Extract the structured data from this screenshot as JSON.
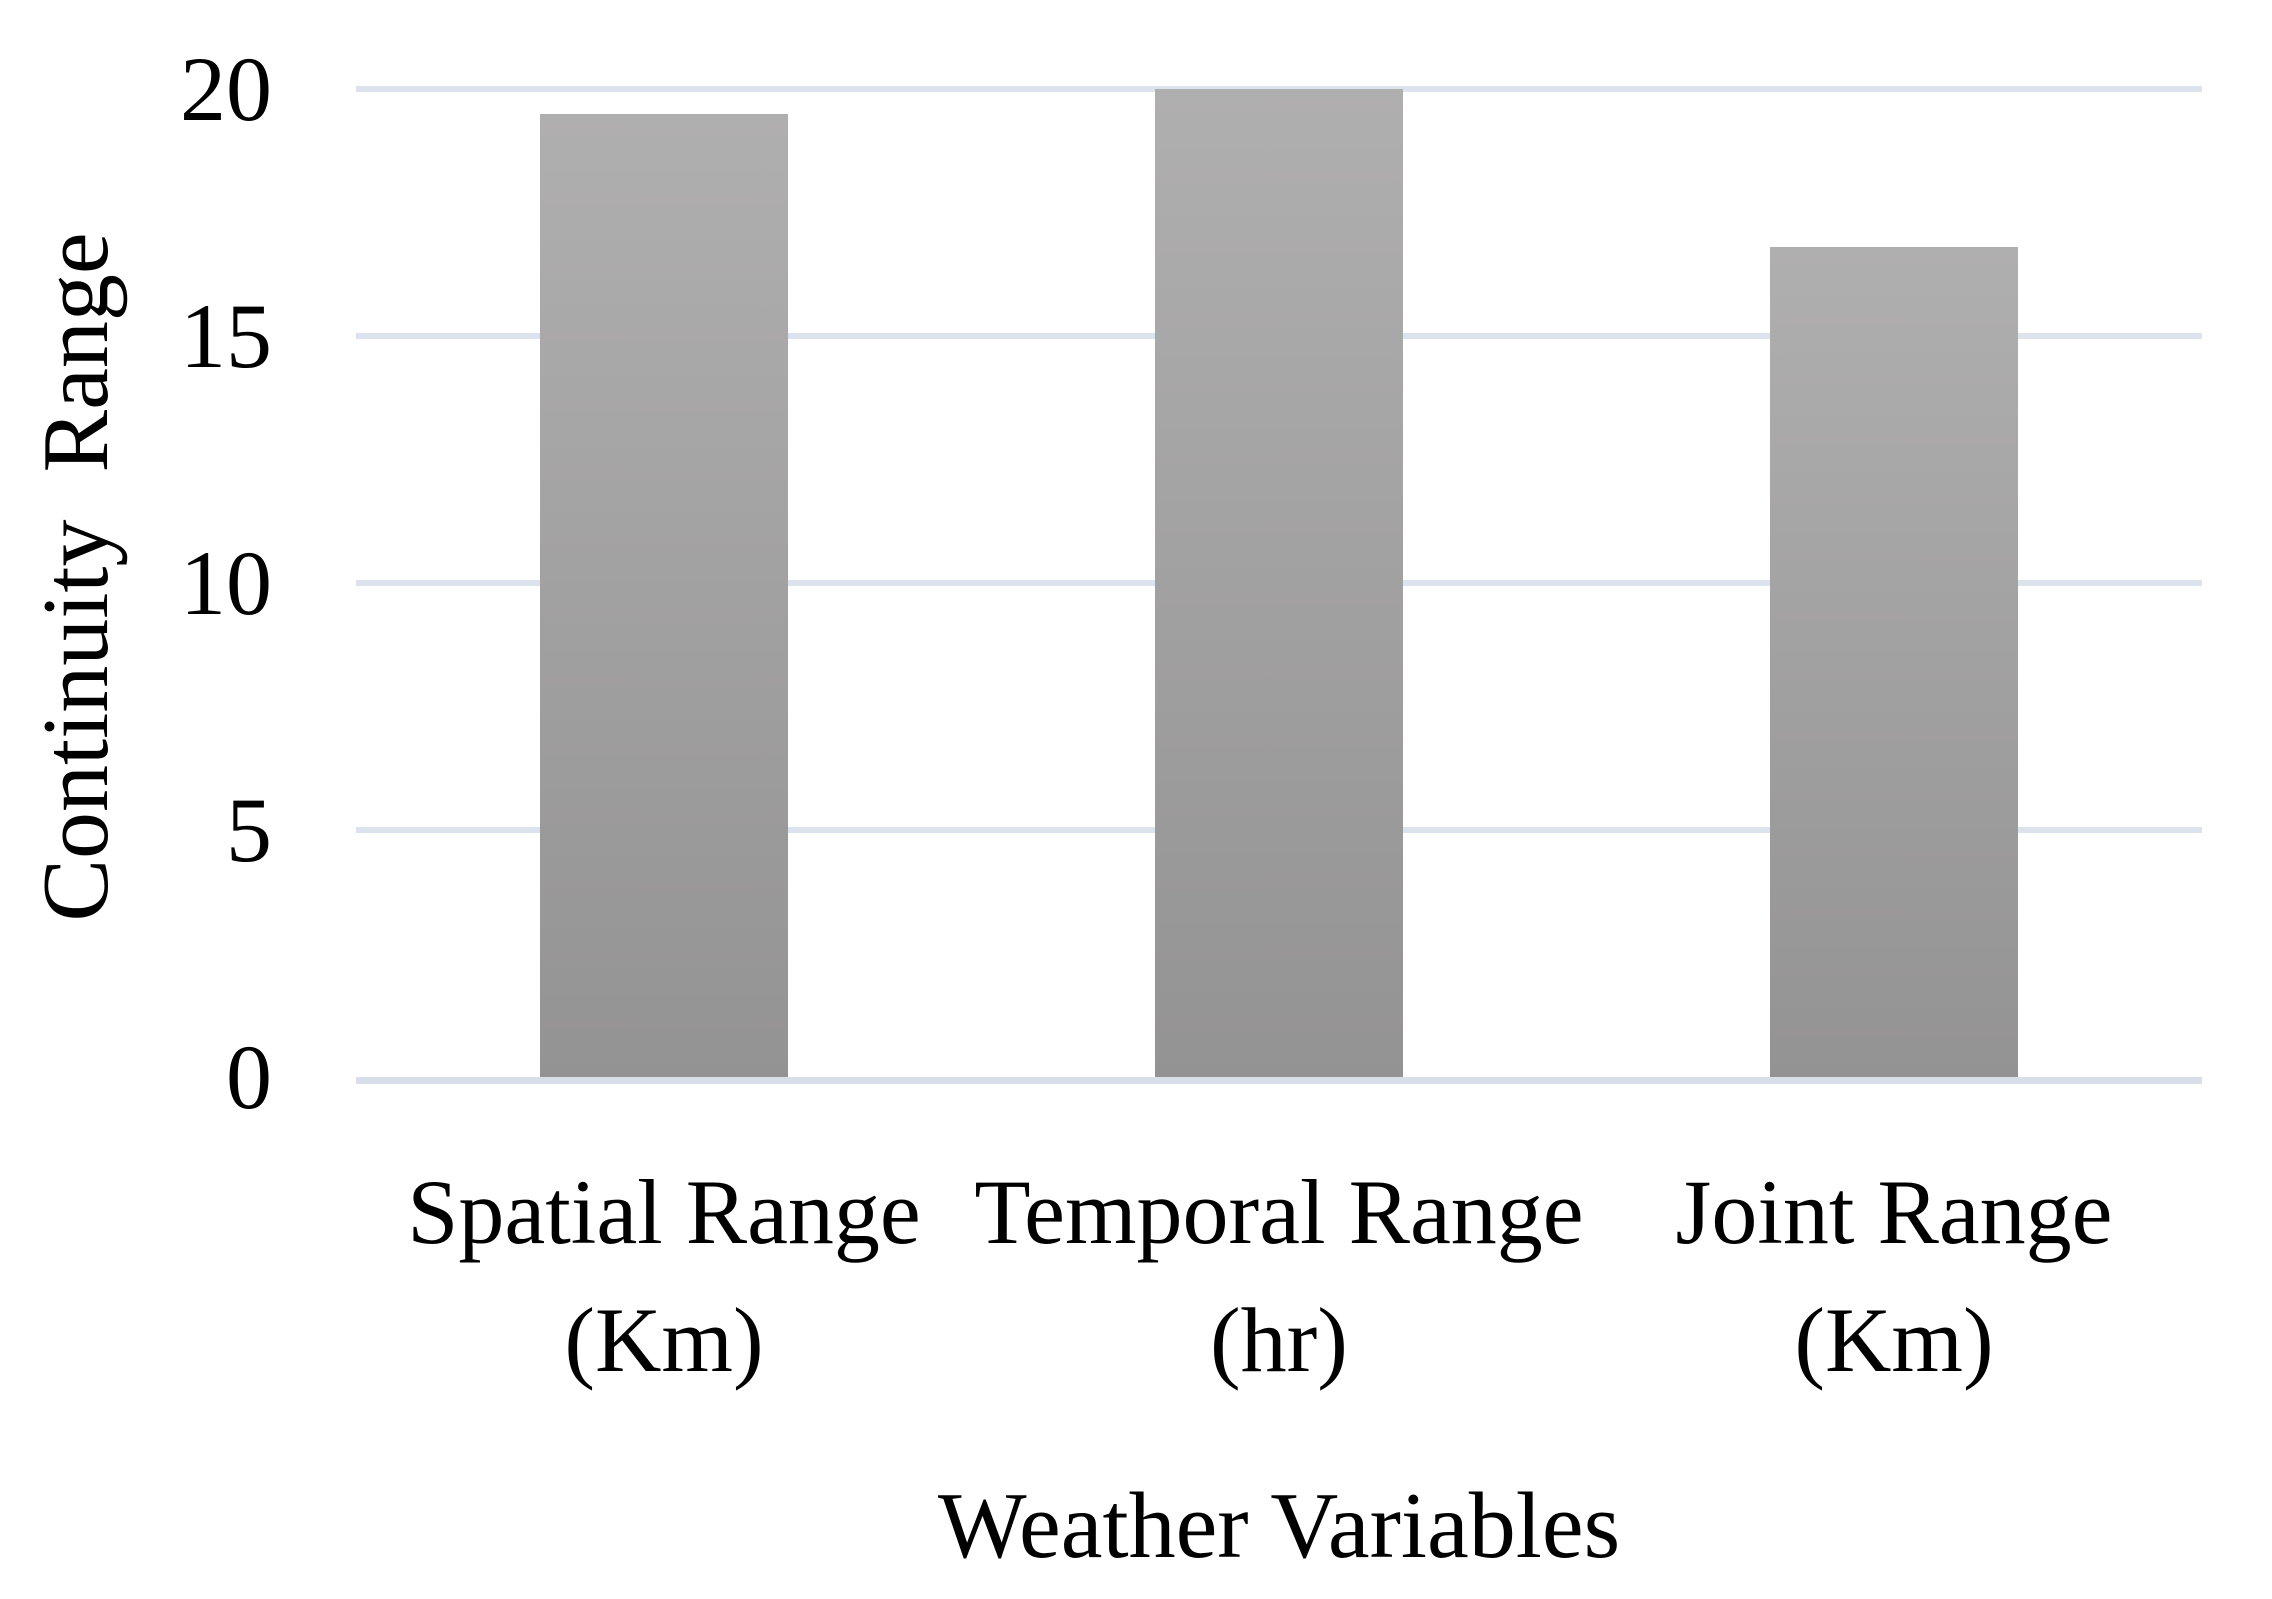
{
  "chart_data": {
    "type": "bar",
    "title": "",
    "xlabel": "Weather Variables",
    "ylabel": "Continuity  Range",
    "categories": [
      "Spatial Range\n(Km)",
      "Temporal Range\n(hr)",
      "Joint Range\n(Km)"
    ],
    "values": [
      19.5,
      20,
      16.8
    ],
    "yticks": [
      0,
      5,
      10,
      15,
      20
    ],
    "ylim": [
      0,
      20
    ],
    "grid": true,
    "legend": false,
    "bar_color_top": "#b0afaf",
    "bar_color_bottom": "#949393",
    "gridline_color": "#dde3ec",
    "baseline_color": "#d8dfe9",
    "text_color": "#000000",
    "background": "#ffffff"
  }
}
